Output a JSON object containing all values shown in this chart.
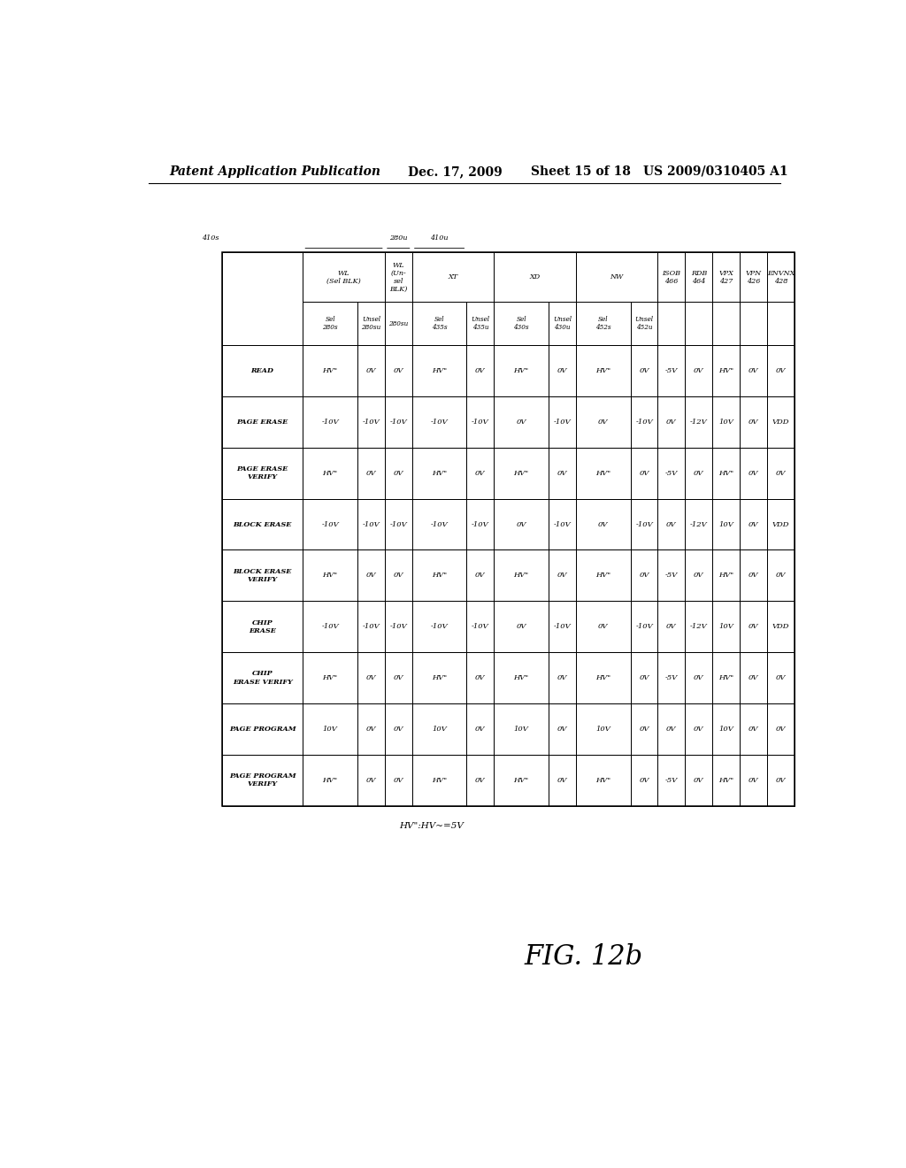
{
  "header_line1": "Patent Application Publication",
  "header_date": "Dec. 17, 2009",
  "header_sheet": "Sheet 15 of 18",
  "header_patent": "US 2009/0310405 A1",
  "fig_label": "FIG. 12b",
  "note": "HV’’:HV~=5V",
  "background_color": "#ffffff",
  "groups": [
    {
      "label": "WL\n(Sel BLK)",
      "start": 0,
      "end": 1
    },
    {
      "label": "WL\n(Un-\nsel\nBLK)",
      "start": 2,
      "end": 2
    },
    {
      "label": "XT",
      "start": 3,
      "end": 4
    },
    {
      "label": "XD",
      "start": 5,
      "end": 6
    },
    {
      "label": "NW",
      "start": 7,
      "end": 8
    },
    {
      "label": "ISOB\n466",
      "start": 9,
      "end": 9
    },
    {
      "label": "RDB\n464",
      "start": 10,
      "end": 10
    },
    {
      "label": "VPX\n427",
      "start": 11,
      "end": 11
    },
    {
      "label": "VPN\n426",
      "start": 12,
      "end": 12
    },
    {
      "label": "ENVNX\n428",
      "start": 13,
      "end": 13
    }
  ],
  "subheaders": [
    "Sel\n280s",
    "Unsel\n280su",
    "280su",
    "Sel\n435s",
    "Unsel\n435u",
    "Sel\n430s",
    "Unsel\n430u",
    "Sel\n452s",
    "Unsel\n452u",
    "",
    "",
    "",
    "",
    ""
  ],
  "subcol_widths_rel": [
    2,
    1,
    1,
    2,
    1,
    2,
    1,
    2,
    1,
    1,
    1,
    1,
    1,
    1
  ],
  "operations": [
    "READ",
    "PAGE ERASE",
    "PAGE ERASE\nVERIFY",
    "BLOCK ERASE",
    "BLOCK ERASE\nVERIFY",
    "CHIP\nERASE",
    "CHIP\nERASE VERIFY",
    "PAGE PROGRAM",
    "PAGE PROGRAM\nVERIFY"
  ],
  "table_values": [
    [
      "HV\"",
      "0V",
      "0V",
      "HV\"",
      "0V",
      "HV\"",
      "0V",
      "HV\"",
      "0V",
      "-5V",
      "0V",
      "HV\"",
      "0V",
      "0V"
    ],
    [
      "-10V",
      "-10V",
      "-10V",
      "-10V",
      "-10V",
      "0V",
      "-10V",
      "0V",
      "-10V",
      "0V",
      "-12V",
      "10V",
      "0V",
      "VDD"
    ],
    [
      "HV\"",
      "0V",
      "0V",
      "HV\"",
      "0V",
      "HV\"",
      "0V",
      "HV\"",
      "0V",
      "-5V",
      "0V",
      "HV\"",
      "0V",
      "0V"
    ],
    [
      "-10V",
      "-10V",
      "-10V",
      "-10V",
      "-10V",
      "0V",
      "-10V",
      "0V",
      "-10V",
      "0V",
      "-12V",
      "10V",
      "0V",
      "VDD"
    ],
    [
      "HV\"",
      "0V",
      "0V",
      "HV\"",
      "0V",
      "HV\"",
      "0V",
      "HV\"",
      "0V",
      "-5V",
      "0V",
      "HV\"",
      "0V",
      "0V"
    ],
    [
      "-10V",
      "-10V",
      "-10V",
      "-10V",
      "-10V",
      "0V",
      "-10V",
      "0V",
      "-10V",
      "0V",
      "-12V",
      "10V",
      "0V",
      "VDD"
    ],
    [
      "HV\"",
      "0V",
      "0V",
      "HV\"",
      "0V",
      "HV\"",
      "0V",
      "HV\"",
      "0V",
      "-5V",
      "0V",
      "HV\"",
      "0V",
      "0V"
    ],
    [
      "10V",
      "0V",
      "0V",
      "10V",
      "0V",
      "10V",
      "0V",
      "10V",
      "0V",
      "0V",
      "0V",
      "10V",
      "0V",
      "0V"
    ],
    [
      "HV\"",
      "0V",
      "0V",
      "HV\"",
      "0V",
      "HV\"",
      "0V",
      "HV\"",
      "0V",
      "-5V",
      "0V",
      "HV\"",
      "0V",
      "0V"
    ]
  ]
}
